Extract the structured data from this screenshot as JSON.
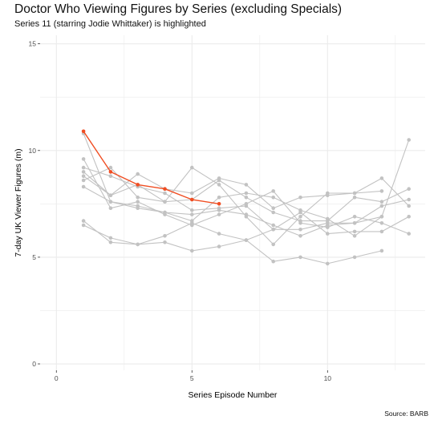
{
  "title": "Doctor Who Viewing Figures by Series (excluding Specials)",
  "subtitle": "Series 11 (starring Jodie Whittaker) is highlighted",
  "caption": "Source: BARB",
  "colors": {
    "background": "#ffffff",
    "grid": "#ebebeb",
    "series_default": "#c2c2c2",
    "highlight": "#f04e23"
  },
  "chart_data": {
    "type": "line",
    "title": "Doctor Who Viewing Figures by Series (excluding Specials)",
    "subtitle": "Series 11 (starring Jodie Whittaker) is highlighted",
    "xlabel": "Series Episode Number",
    "ylabel": "7-day UK Viewer Figures (m)",
    "xlim": [
      -0.6,
      13.6
    ],
    "ylim": [
      -0.3,
      15.4
    ],
    "x_ticks": [
      0,
      5,
      10
    ],
    "y_ticks": [
      0,
      5,
      10,
      15
    ],
    "grid": true,
    "legend": "none",
    "series": [
      {
        "highlight": false,
        "x": [
          1,
          2,
          3,
          4,
          5,
          6,
          7,
          8,
          9,
          10,
          11,
          12,
          13
        ],
        "y": [
          10.8,
          7.6,
          7.3,
          7.1,
          7.0,
          7.2,
          7.0,
          6.5,
          6.0,
          6.5,
          6.6,
          7.4,
          7.7
        ]
      },
      {
        "highlight": false,
        "x": [
          1,
          2,
          3,
          4,
          5,
          6,
          7,
          8,
          9,
          10,
          11,
          12,
          13
        ],
        "y": [
          9.6,
          7.3,
          7.6,
          7.0,
          6.5,
          7.0,
          7.5,
          8.1,
          6.6,
          6.4,
          6.9,
          6.6,
          6.1
        ]
      },
      {
        "highlight": false,
        "x": [
          1,
          2,
          3,
          4,
          5,
          6,
          7,
          8,
          9,
          10,
          11,
          12,
          13
        ],
        "y": [
          9.2,
          8.8,
          8.3,
          8.0,
          7.2,
          7.3,
          7.4,
          6.3,
          7.1,
          6.1,
          6.2,
          6.2,
          6.9
        ]
      },
      {
        "highlight": false,
        "x": [
          1,
          2,
          3,
          4,
          5,
          6,
          7,
          8,
          9,
          10,
          11,
          12,
          13
        ],
        "y": [
          8.6,
          9.2,
          7.8,
          7.6,
          7.7,
          8.6,
          7.8,
          7.1,
          6.7,
          6.7,
          7.8,
          7.6,
          8.2
        ]
      },
      {
        "highlight": false,
        "x": [
          1,
          2,
          3,
          4,
          5,
          6,
          7,
          8,
          9,
          10,
          11,
          12,
          13
        ],
        "y": [
          8.3,
          7.6,
          7.4,
          7.1,
          6.7,
          7.8,
          8.0,
          7.8,
          7.2,
          6.8,
          6.0,
          6.9,
          10.5
        ]
      },
      {
        "highlight": false,
        "x": [
          1,
          2,
          3,
          4,
          5,
          6,
          7,
          8,
          9,
          10,
          11,
          12,
          13
        ],
        "y": [
          9.0,
          7.9,
          8.4,
          7.6,
          9.2,
          8.4,
          6.9,
          5.6,
          6.9,
          8.0,
          8.0,
          8.7,
          7.4
        ]
      },
      {
        "highlight": false,
        "x": [
          1,
          2,
          3,
          4,
          5,
          6,
          7,
          8,
          9,
          10,
          11,
          12
        ],
        "y": [
          6.7,
          5.7,
          5.6,
          5.7,
          5.3,
          5.5,
          5.8,
          4.8,
          5.0,
          4.7,
          5.0,
          5.3
        ]
      },
      {
        "highlight": false,
        "x": [
          1,
          2,
          3,
          4,
          5,
          6,
          7,
          8,
          9,
          10,
          11,
          12
        ],
        "y": [
          6.5,
          5.9,
          5.6,
          6.0,
          6.6,
          6.1,
          5.8,
          6.3,
          6.3,
          6.6,
          6.6,
          6.9
        ]
      },
      {
        "highlight": false,
        "x": [
          1,
          2,
          3,
          4,
          5,
          6,
          7,
          8,
          9,
          10,
          11,
          12
        ],
        "y": [
          8.8,
          7.9,
          8.9,
          8.2,
          8.0,
          8.7,
          8.4,
          7.3,
          7.8,
          7.9,
          8.0,
          8.1
        ]
      },
      {
        "highlight": true,
        "x": [
          1,
          2,
          3,
          4,
          5,
          6
        ],
        "y": [
          10.9,
          9.0,
          8.4,
          8.2,
          7.7,
          7.5
        ]
      }
    ]
  }
}
